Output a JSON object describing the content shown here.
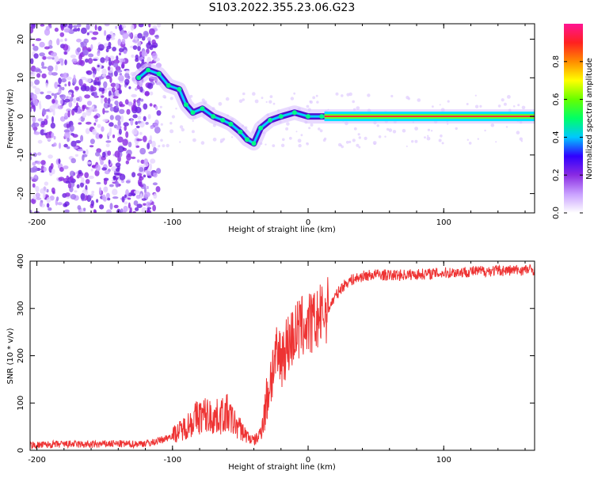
{
  "page_title": "S103.2022.355.23.06.G23",
  "chart_data": [
    {
      "type": "heatmap",
      "xlabel": "Height of straight line (km)",
      "ylabel": "Frequency (Hz)",
      "xlim": [
        -205,
        167
      ],
      "ylim": [
        -25,
        24
      ],
      "xticks": [
        "-200",
        "-100",
        "0",
        "100"
      ],
      "yticks": [
        "20",
        "10",
        "0",
        "-10",
        "-20"
      ],
      "ridge": [
        {
          "x": -125,
          "y": 10
        },
        {
          "x": -118,
          "y": 12
        },
        {
          "x": -110,
          "y": 11
        },
        {
          "x": -103,
          "y": 8
        },
        {
          "x": -95,
          "y": 7
        },
        {
          "x": -90,
          "y": 3
        },
        {
          "x": -85,
          "y": 1
        },
        {
          "x": -78,
          "y": 2
        },
        {
          "x": -70,
          "y": 0
        },
        {
          "x": -63,
          "y": -1
        },
        {
          "x": -57,
          "y": -2
        },
        {
          "x": -50,
          "y": -4
        },
        {
          "x": -45,
          "y": -6
        },
        {
          "x": -40,
          "y": -7
        },
        {
          "x": -35,
          "y": -3
        },
        {
          "x": -28,
          "y": -1
        },
        {
          "x": -20,
          "y": 0
        },
        {
          "x": -10,
          "y": 1
        },
        {
          "x": 0,
          "y": 0
        },
        {
          "x": 10,
          "y": 0
        },
        {
          "x": 20,
          "y": 0
        },
        {
          "x": 60,
          "y": 0
        },
        {
          "x": 100,
          "y": 0
        },
        {
          "x": 167,
          "y": 0
        }
      ],
      "colorbar": {
        "label": "Normalized spectral amplitude",
        "ticks": [
          "0.0",
          "0.2",
          "0.4",
          "0.6",
          "0.8"
        ],
        "range": [
          0,
          1
        ],
        "colors": [
          "#ffffff",
          "#c9a0ff",
          "#8a2be2",
          "#3000ff",
          "#00c8ff",
          "#00ff66",
          "#66ff00",
          "#ffff00",
          "#ff8c00",
          "#ff2020",
          "#ff1493"
        ]
      }
    },
    {
      "type": "line",
      "xlabel": "Height of straight line (km)",
      "ylabel": "SNR (10 * v/v)",
      "xlim": [
        -205,
        167
      ],
      "ylim": [
        0,
        400
      ],
      "xticks": [
        "-200",
        "-100",
        "0",
        "100"
      ],
      "yticks": [
        "400",
        "300",
        "200",
        "100",
        "0"
      ],
      "color": "#ee3333",
      "series": [
        {
          "x": [
            -205,
            -190,
            -175,
            -160,
            -145,
            -130,
            -115,
            -105,
            -95,
            -88,
            -82,
            -75,
            -70,
            -65,
            -60,
            -55,
            -50,
            -45,
            -40,
            -36,
            -32,
            -28,
            -25,
            -20,
            -15,
            -10,
            -5,
            0,
            5,
            10,
            15,
            20,
            25,
            30,
            40,
            50,
            60,
            80,
            100,
            120,
            140,
            167
          ],
          "y": [
            10,
            12,
            13,
            12,
            14,
            13,
            16,
            25,
            40,
            55,
            70,
            75,
            68,
            72,
            78,
            60,
            45,
            30,
            20,
            30,
            80,
            150,
            185,
            200,
            225,
            245,
            260,
            265,
            270,
            285,
            300,
            325,
            345,
            358,
            368,
            372,
            370,
            372,
            375,
            378,
            380,
            382
          ]
        }
      ]
    }
  ]
}
